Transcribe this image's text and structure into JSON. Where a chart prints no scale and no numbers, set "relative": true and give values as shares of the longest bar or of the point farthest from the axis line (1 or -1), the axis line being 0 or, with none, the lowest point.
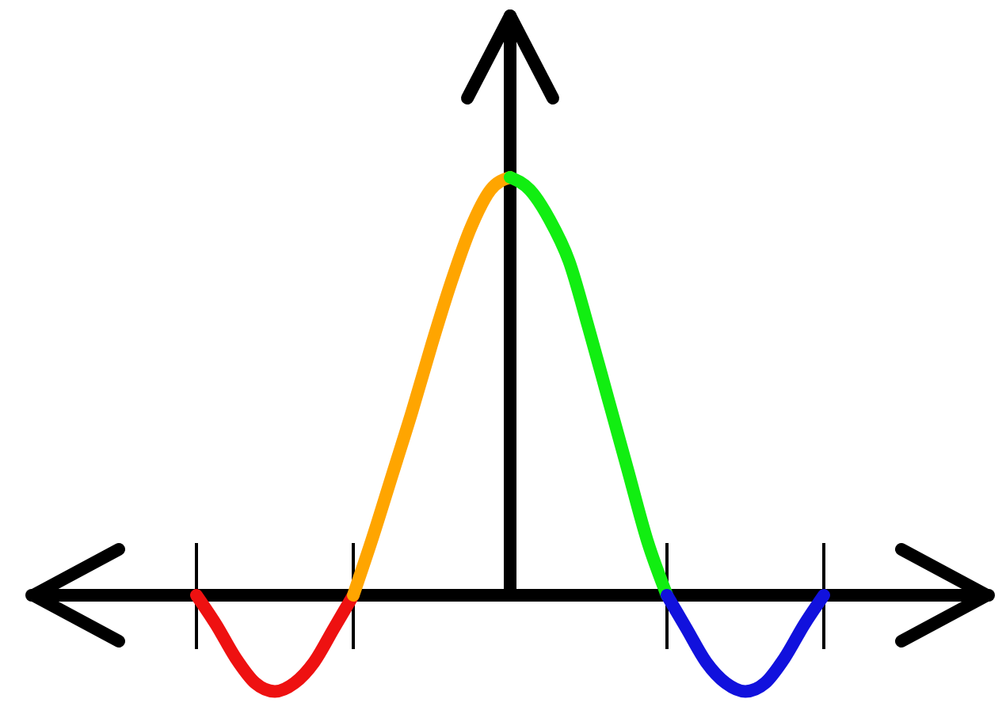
{
  "chart_data": {
    "type": "line",
    "relative": true,
    "categories": [
      null,
      null,
      null,
      null,
      null,
      null,
      null,
      null,
      null,
      null,
      null,
      null,
      null,
      null,
      null,
      null,
      null,
      null,
      null,
      null,
      null,
      null,
      null,
      null,
      null,
      null,
      null,
      null,
      null,
      null,
      null,
      null,
      null
    ],
    "series": [
      {
        "color": "#ee1111",
        "values": [
          0,
          -0.07,
          -0.15,
          -0.21,
          -0.23,
          -0.21,
          -0.16,
          -0.08,
          0,
          null,
          null,
          null,
          null,
          null,
          null,
          null,
          null,
          null,
          null,
          null,
          null,
          null,
          null,
          null,
          null,
          null,
          null,
          null,
          null,
          null,
          null,
          null,
          null
        ]
      },
      {
        "color": "#ffa500",
        "values": [
          null,
          null,
          null,
          null,
          null,
          null,
          null,
          null,
          0,
          0.14,
          0.29,
          0.44,
          0.6,
          0.75,
          0.88,
          0.97,
          1,
          null,
          null,
          null,
          null,
          null,
          null,
          null,
          null,
          null,
          null,
          null,
          null,
          null,
          null,
          null,
          null
        ]
      },
      {
        "color": "#11ee11",
        "values": [
          null,
          null,
          null,
          null,
          null,
          null,
          null,
          null,
          null,
          null,
          null,
          null,
          null,
          null,
          null,
          null,
          1,
          0.97,
          0.9,
          0.8,
          0.64,
          0.47,
          0.3,
          0.13,
          0,
          null,
          null,
          null,
          null,
          null,
          null,
          null,
          null
        ]
      },
      {
        "color": "#1111dd",
        "values": [
          null,
          null,
          null,
          null,
          null,
          null,
          null,
          null,
          null,
          null,
          null,
          null,
          null,
          null,
          null,
          null,
          null,
          null,
          null,
          null,
          null,
          null,
          null,
          null,
          0,
          -0.08,
          -0.16,
          -0.21,
          -0.23,
          -0.21,
          -0.15,
          -0.07,
          0
        ]
      }
    ]
  }
}
